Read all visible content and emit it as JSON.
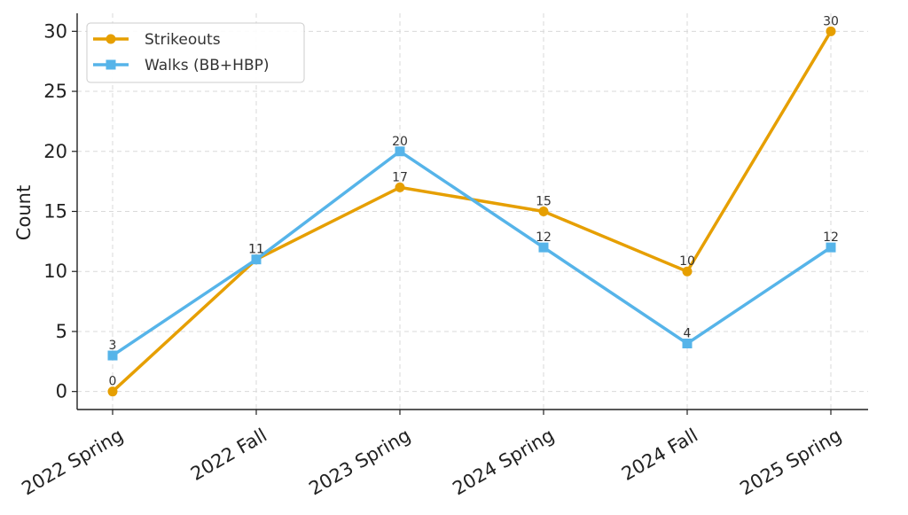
{
  "chart_data": {
    "type": "line",
    "title": "",
    "xlabel": "",
    "ylabel": "Count",
    "categories": [
      "2022 Spring",
      "2022 Fall",
      "2023 Spring",
      "2024 Spring",
      "2024 Fall",
      "2025 Spring"
    ],
    "yticks": [
      0,
      5,
      10,
      15,
      20,
      25,
      30
    ],
    "ylim": [
      -1.5,
      31.5
    ],
    "grid": true,
    "legend_position": "top-left",
    "series": [
      {
        "name": "Strikeouts",
        "values": [
          0,
          11,
          17,
          15,
          10,
          30
        ],
        "color": "#E69F00",
        "marker": "circle"
      },
      {
        "name": "Walks (BB+HBP)",
        "values": [
          3,
          11,
          20,
          12,
          4,
          12
        ],
        "color": "#56B4E9",
        "marker": "square"
      }
    ]
  }
}
